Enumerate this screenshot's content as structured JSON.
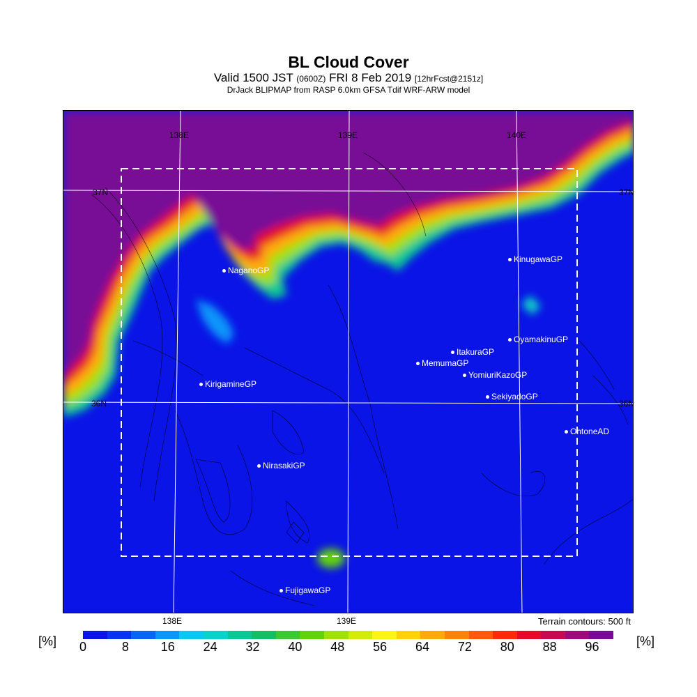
{
  "header": {
    "title": "BL Cloud Cover",
    "valid_prefix": "Valid 1500 JST",
    "valid_utc": "(0600Z)",
    "valid_date": "FRI 8 Feb 2019",
    "valid_fcst": "[12hrFcst@2151z]",
    "model": "DrJack BLIPMAP from RASP 6.0km GFSA Tdif WRF-ARW model"
  },
  "map": {
    "lon_labels": [
      "138E",
      "139E",
      "140E"
    ],
    "lat_labels": [
      "37N",
      "36N"
    ],
    "stations": [
      {
        "name": "NaganoGP"
      },
      {
        "name": "KinugawaGP"
      },
      {
        "name": "OyamakinuGP"
      },
      {
        "name": "ItakuraGP"
      },
      {
        "name": "MemumaGP"
      },
      {
        "name": "YomiuriKazoGP"
      },
      {
        "name": "KirigamineGP"
      },
      {
        "name": "SekiyadoGP"
      },
      {
        "name": "OhtoneAD"
      },
      {
        "name": "NirasakiGP"
      },
      {
        "name": "FujigawaGP"
      }
    ]
  },
  "terrain_note": "Terrain contours: 500 ft",
  "colorbar": {
    "unit_left": "[%]",
    "unit_right": "[%]",
    "ticks": [
      "0",
      "8",
      "16",
      "24",
      "32",
      "40",
      "48",
      "56",
      "64",
      "72",
      "80",
      "88",
      "96"
    ],
    "colors": [
      "#0a14e6",
      "#0a32f0",
      "#0a64f5",
      "#0a96fa",
      "#0ac8f0",
      "#0ad2c8",
      "#0ac896",
      "#14be64",
      "#3cc832",
      "#64d20a",
      "#a0e10a",
      "#d2eb0a",
      "#fff514",
      "#ffd20a",
      "#ffaa0a",
      "#ff820a",
      "#ff5a0a",
      "#ff280a",
      "#e60a28",
      "#c80a50",
      "#a00a78",
      "#780a96"
    ]
  }
}
